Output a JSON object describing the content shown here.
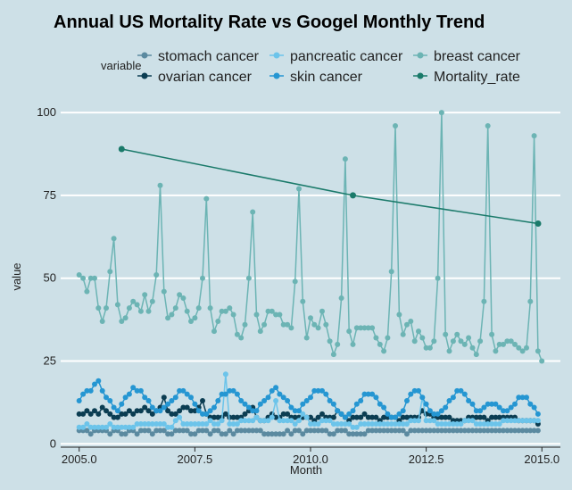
{
  "chart_data": {
    "type": "line",
    "title": "Annual US Mortality Rate vs Googel Monthly Trend",
    "xlabel": "Month",
    "ylabel": "value",
    "xlim": [
      2004.6,
      2015.4
    ],
    "ylim": [
      -1,
      103
    ],
    "x_ticks": [
      2005.0,
      2007.5,
      2010.0,
      2012.5,
      2015.0
    ],
    "x_tick_labels": [
      "2005.0",
      "2007.5",
      "2010.0",
      "2012.5",
      "2015.0"
    ],
    "y_ticks": [
      0,
      25,
      50,
      75,
      100
    ],
    "y_tick_labels": [
      "0",
      "25",
      "50",
      "75",
      "100"
    ],
    "grid": "horizontal",
    "legend": {
      "title": "variable",
      "position": "top",
      "entries": [
        {
          "name": "stomach cancer",
          "color": "#5b8aa0"
        },
        {
          "name": "ovarian cancer",
          "color": "#0b3d52"
        },
        {
          "name": "pancreatic cancer",
          "color": "#6cc4ea"
        },
        {
          "name": "skin cancer",
          "color": "#2596d2"
        },
        {
          "name": "breast cancer",
          "color": "#6cb4b4"
        },
        {
          "name": "Mortality_rate",
          "color": "#1a7a6a"
        }
      ]
    },
    "series": [
      {
        "name": "stomach cancer",
        "color": "#5b8aa0",
        "start": 2005.0,
        "step": 0.08333,
        "values": [
          4,
          4,
          4,
          3,
          4,
          4,
          4,
          4,
          3,
          4,
          4,
          3,
          3,
          4,
          4,
          3,
          4,
          4,
          4,
          3,
          4,
          4,
          4,
          3,
          3,
          4,
          4,
          4,
          4,
          3,
          3,
          4,
          4,
          4,
          3,
          4,
          4,
          3,
          3,
          4,
          3,
          4,
          4,
          4,
          4,
          4,
          4,
          4,
          3,
          3,
          3,
          3,
          3,
          3,
          4,
          3,
          4,
          4,
          3,
          4,
          4,
          4,
          4,
          4,
          4,
          3,
          3,
          4,
          4,
          4,
          3,
          3,
          3,
          3,
          3,
          4,
          4,
          4,
          4,
          4,
          4,
          4,
          4,
          4,
          4,
          3,
          4,
          4,
          4,
          4,
          4,
          4,
          4,
          4,
          4,
          4,
          4,
          4,
          4,
          4,
          4,
          4,
          4,
          4,
          4,
          4,
          4,
          4,
          4,
          4,
          4,
          4,
          4,
          4,
          4,
          4,
          4,
          4,
          4,
          4
        ]
      },
      {
        "name": "ovarian cancer",
        "color": "#0b3d52",
        "start": 2005.0,
        "step": 0.08333,
        "values": [
          9,
          9,
          10,
          9,
          10,
          9,
          11,
          10,
          9,
          8,
          8,
          9,
          9,
          10,
          9,
          10,
          10,
          11,
          10,
          9,
          10,
          11,
          14,
          10,
          9,
          9,
          10,
          11,
          11,
          10,
          10,
          11,
          13,
          9,
          8,
          8,
          8,
          8,
          9,
          8,
          8,
          8,
          8,
          9,
          10,
          11,
          8,
          7,
          7,
          8,
          9,
          8,
          8,
          9,
          9,
          8,
          8,
          8,
          8,
          8,
          8,
          7,
          8,
          9,
          8,
          8,
          8,
          10,
          9,
          8,
          7,
          8,
          8,
          8,
          9,
          8,
          8,
          8,
          7,
          8,
          8,
          8,
          8,
          7,
          8,
          8,
          8,
          8,
          8,
          10,
          9,
          9,
          8,
          8,
          8,
          8,
          8,
          7,
          7,
          7,
          7,
          8,
          8,
          8,
          8,
          8,
          7,
          8,
          8,
          8,
          8,
          8,
          8,
          8,
          7,
          7,
          7,
          7,
          7,
          6
        ]
      },
      {
        "name": "pancreatic cancer",
        "color": "#6cc4ea",
        "start": 2005.0,
        "step": 0.08333,
        "values": [
          5,
          5,
          6,
          5,
          5,
          5,
          5,
          5,
          6,
          5,
          5,
          5,
          5,
          5,
          5,
          6,
          6,
          6,
          6,
          6,
          6,
          6,
          6,
          5,
          5,
          7,
          8,
          6,
          6,
          6,
          6,
          6,
          6,
          6,
          7,
          6,
          6,
          7,
          21,
          6,
          6,
          6,
          7,
          7,
          7,
          7,
          8,
          7,
          7,
          7,
          8,
          13,
          7,
          7,
          7,
          7,
          6,
          7,
          9,
          8,
          6,
          6,
          6,
          7,
          7,
          7,
          6,
          6,
          6,
          6,
          6,
          5,
          5,
          6,
          6,
          6,
          6,
          6,
          6,
          6,
          6,
          6,
          6,
          6,
          6,
          6,
          7,
          7,
          7,
          14,
          7,
          7,
          7,
          6,
          6,
          6,
          6,
          6,
          6,
          6,
          7,
          7,
          7,
          6,
          6,
          6,
          6,
          6,
          6,
          6,
          7,
          7,
          7,
          7,
          7,
          7,
          7,
          7,
          7,
          7
        ]
      },
      {
        "name": "skin cancer",
        "color": "#2596d2",
        "start": 2005.0,
        "step": 0.08333,
        "values": [
          13,
          15,
          16,
          16,
          18,
          19,
          16,
          14,
          13,
          11,
          10,
          12,
          14,
          15,
          17,
          16,
          16,
          14,
          13,
          11,
          10,
          10,
          11,
          12,
          13,
          14,
          16,
          16,
          15,
          14,
          12,
          10,
          9,
          9,
          10,
          11,
          13,
          15,
          15,
          16,
          16,
          15,
          13,
          12,
          11,
          10,
          10,
          12,
          13,
          14,
          16,
          17,
          15,
          14,
          13,
          11,
          10,
          10,
          12,
          13,
          14,
          16,
          16,
          16,
          15,
          13,
          12,
          10,
          9,
          8,
          9,
          10,
          12,
          13,
          15,
          15,
          15,
          14,
          12,
          11,
          9,
          8,
          8,
          9,
          10,
          13,
          15,
          16,
          16,
          14,
          12,
          10,
          9,
          9,
          10,
          11,
          13,
          14,
          16,
          16,
          15,
          13,
          12,
          10,
          10,
          11,
          12,
          12,
          12,
          11,
          10,
          10,
          11,
          12,
          14,
          14,
          14,
          12,
          11,
          9
        ]
      },
      {
        "name": "breast cancer",
        "color": "#6cb4b4",
        "start": 2005.0,
        "step": 0.08333,
        "values": [
          51,
          50,
          46,
          50,
          50,
          41,
          37,
          41,
          52,
          62,
          42,
          37,
          38,
          41,
          43,
          42,
          40,
          45,
          40,
          43,
          51,
          78,
          46,
          38,
          39,
          41,
          45,
          44,
          40,
          37,
          38,
          41,
          50,
          74,
          41,
          34,
          37,
          40,
          40,
          41,
          39,
          33,
          32,
          36,
          50,
          70,
          39,
          34,
          36,
          40,
          40,
          39,
          39,
          36,
          36,
          35,
          49,
          77,
          43,
          32,
          38,
          36,
          35,
          40,
          36,
          31,
          27,
          30,
          44,
          86,
          34,
          30,
          35,
          35,
          35,
          35,
          35,
          32,
          30,
          28,
          32,
          52,
          96,
          39,
          33,
          36,
          37,
          31,
          34,
          32,
          29,
          29,
          31,
          50,
          100,
          33,
          28,
          31,
          33,
          31,
          30,
          32,
          29,
          27,
          31,
          43,
          96,
          33,
          28,
          30,
          30,
          31,
          31,
          30,
          29,
          28,
          29,
          43,
          93,
          28,
          25
        ]
      },
      {
        "name": "Mortality_rate",
        "color": "#1a7a6a",
        "x": [
          2005.917,
          2010.917,
          2014.917
        ],
        "values": [
          89,
          75,
          66.5
        ]
      }
    ]
  }
}
